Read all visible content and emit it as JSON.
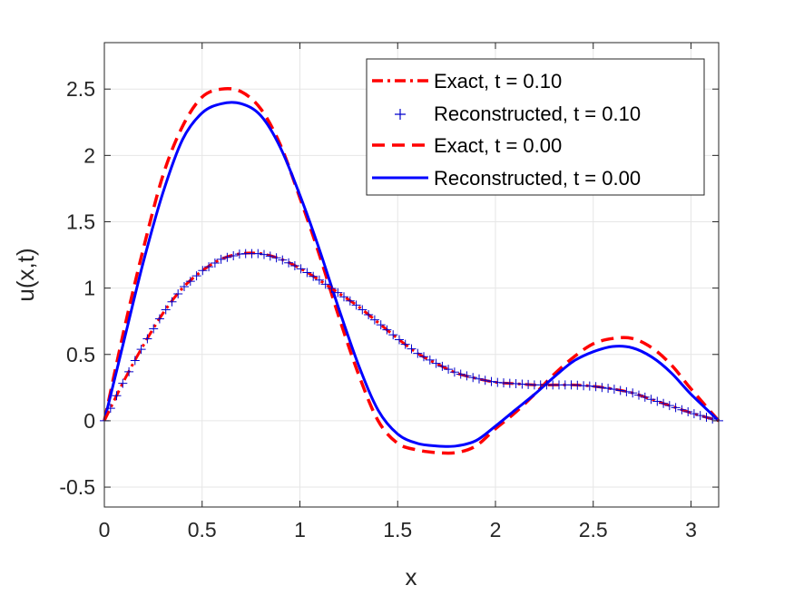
{
  "chart_data": {
    "type": "line",
    "title": "",
    "xlabel": "x",
    "ylabel": "u(x,t)",
    "xlim": [
      0,
      3.14159
    ],
    "ylim": [
      -0.65,
      2.85
    ],
    "xticks": [
      0,
      0.5,
      1,
      1.5,
      2,
      2.5,
      3
    ],
    "yticks": [
      -0.5,
      0,
      0.5,
      1,
      1.5,
      2,
      2.5
    ],
    "xtick_labels": [
      "0",
      "0.5",
      "1",
      "1.5",
      "2",
      "2.5",
      "3"
    ],
    "ytick_labels": [
      "-0.5",
      "0",
      "0.5",
      "1",
      "1.5",
      "2",
      "2.5"
    ],
    "grid": true,
    "legend_position": "top-right",
    "x": [
      0,
      0.1,
      0.2,
      0.3,
      0.4,
      0.5,
      0.6,
      0.7,
      0.8,
      0.9,
      1.0,
      1.1,
      1.2,
      1.3,
      1.4,
      1.5,
      1.6,
      1.7,
      1.8,
      1.9,
      2.0,
      2.1,
      2.2,
      2.3,
      2.4,
      2.5,
      2.6,
      2.7,
      2.8,
      2.9,
      3.0,
      3.14159
    ],
    "series": [
      {
        "name": "Exact, t = 0.10",
        "color": "#ff0000",
        "style": "dash-dot",
        "values": [
          0,
          0.3,
          0.57,
          0.81,
          1.0,
          1.13,
          1.22,
          1.26,
          1.26,
          1.22,
          1.15,
          1.06,
          0.96,
          0.86,
          0.74,
          0.62,
          0.51,
          0.43,
          0.36,
          0.32,
          0.29,
          0.28,
          0.27,
          0.27,
          0.27,
          0.26,
          0.24,
          0.21,
          0.16,
          0.11,
          0.06,
          0
        ]
      },
      {
        "name": "Reconstructed, t = 0.10",
        "color": "#0000cc",
        "style": "plus-markers",
        "values": [
          0,
          0.3,
          0.57,
          0.81,
          1.0,
          1.13,
          1.22,
          1.26,
          1.26,
          1.22,
          1.15,
          1.06,
          0.96,
          0.86,
          0.74,
          0.62,
          0.51,
          0.43,
          0.36,
          0.32,
          0.29,
          0.28,
          0.27,
          0.27,
          0.27,
          0.26,
          0.24,
          0.21,
          0.16,
          0.11,
          0.06,
          0
        ]
      },
      {
        "name": "Exact, t = 0.00",
        "color": "#ff0000",
        "style": "dashed",
        "values": [
          0,
          0.68,
          1.3,
          1.85,
          2.22,
          2.44,
          2.5,
          2.48,
          2.35,
          2.08,
          1.68,
          1.25,
          0.78,
          0.35,
          0.0,
          -0.17,
          -0.22,
          -0.24,
          -0.24,
          -0.19,
          -0.06,
          0.06,
          0.2,
          0.35,
          0.48,
          0.58,
          0.62,
          0.62,
          0.55,
          0.42,
          0.24,
          0
        ]
      },
      {
        "name": "Reconstructed, t = 0.00",
        "color": "#0000ff",
        "style": "solid",
        "values": [
          0,
          0.6,
          1.2,
          1.72,
          2.12,
          2.32,
          2.39,
          2.39,
          2.3,
          2.06,
          1.7,
          1.29,
          0.84,
          0.42,
          0.08,
          -0.1,
          -0.17,
          -0.19,
          -0.19,
          -0.15,
          -0.04,
          0.08,
          0.2,
          0.33,
          0.45,
          0.52,
          0.56,
          0.55,
          0.48,
          0.36,
          0.2,
          0
        ]
      }
    ]
  }
}
